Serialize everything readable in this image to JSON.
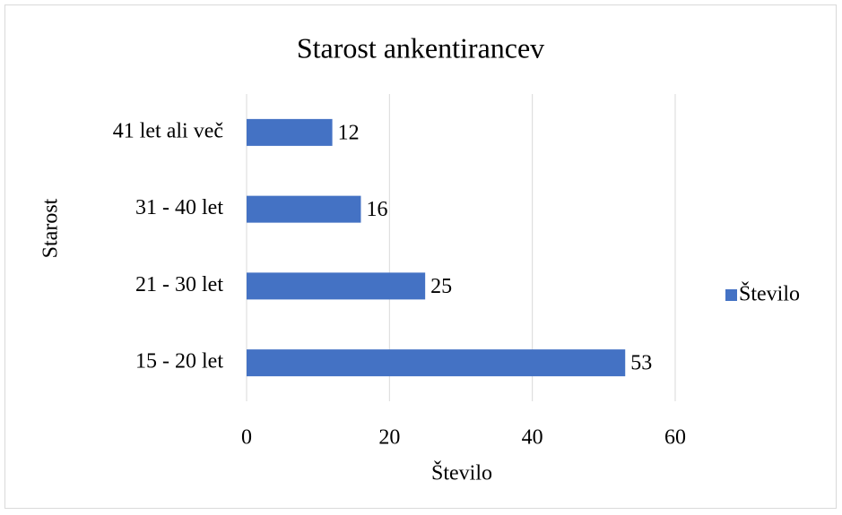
{
  "chart_data": {
    "type": "bar",
    "orientation": "horizontal",
    "title": "Starost ankentirancev",
    "categories": [
      "15 - 20 let",
      "21 - 30 let",
      "31 - 40 let",
      "41 let ali več"
    ],
    "series": [
      {
        "name": "Število",
        "color": "#4472c4",
        "values": [
          53,
          25,
          16,
          12
        ]
      }
    ],
    "xlabel": "Število",
    "ylabel": "Starost",
    "xlim": [
      0,
      60
    ],
    "xticks": [
      0,
      20,
      40,
      60
    ],
    "grid": true,
    "legend": "right"
  }
}
